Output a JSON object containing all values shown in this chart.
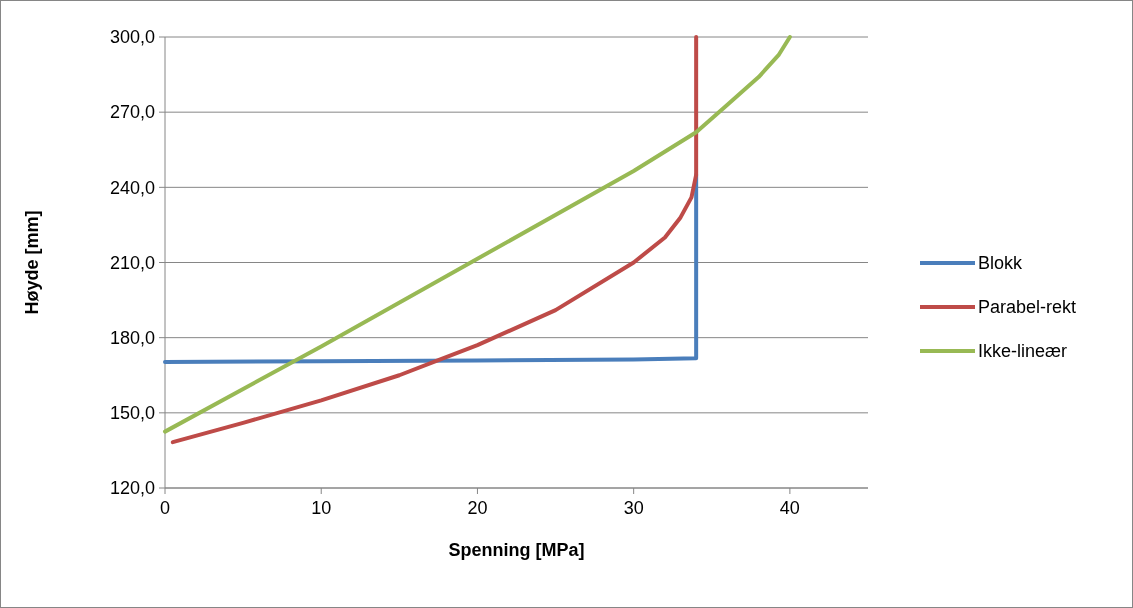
{
  "chart_data": {
    "type": "line",
    "xlabel": "Spenning [MPa]",
    "ylabel": "Høyde [mm]",
    "xlim": [
      0,
      45
    ],
    "xticks": [
      0,
      10,
      20,
      30,
      40
    ],
    "ylim": [
      120,
      300
    ],
    "yticks": [
      {
        "value": 120,
        "label": "120,0"
      },
      {
        "value": 150,
        "label": "150,0"
      },
      {
        "value": 180,
        "label": "180,0"
      },
      {
        "value": 210,
        "label": "210,0"
      },
      {
        "value": 240,
        "label": "240,0"
      },
      {
        "value": 270,
        "label": "270,0"
      },
      {
        "value": 300,
        "label": "300,0"
      }
    ],
    "grid": "y",
    "legend": "right",
    "marker": "none",
    "line_style": "solid",
    "series": [
      {
        "name": "Blokk",
        "color": "#4a7ebb",
        "x": [
          0,
          10,
          20,
          30,
          34,
          34
        ],
        "values": [
          170.3,
          170.6,
          170.9,
          171.3,
          171.8,
          245
        ]
      },
      {
        "name": "Parabel-rekt",
        "color": "#be4b48",
        "x": [
          0.5,
          5,
          10,
          15,
          17.5,
          20,
          25,
          30,
          32,
          33,
          33.7,
          34,
          34
        ],
        "values": [
          138.3,
          146,
          155,
          165,
          171,
          177,
          191,
          210,
          220,
          228,
          236,
          245,
          300
        ]
      },
      {
        "name": "Ikke-lineær",
        "color": "#98b954",
        "x": [
          0,
          10,
          20,
          30,
          34,
          36,
          38,
          39.3,
          40
        ],
        "values": [
          142.5,
          176.5,
          211.5,
          246.5,
          262,
          273,
          284,
          293,
          300
        ]
      }
    ]
  }
}
